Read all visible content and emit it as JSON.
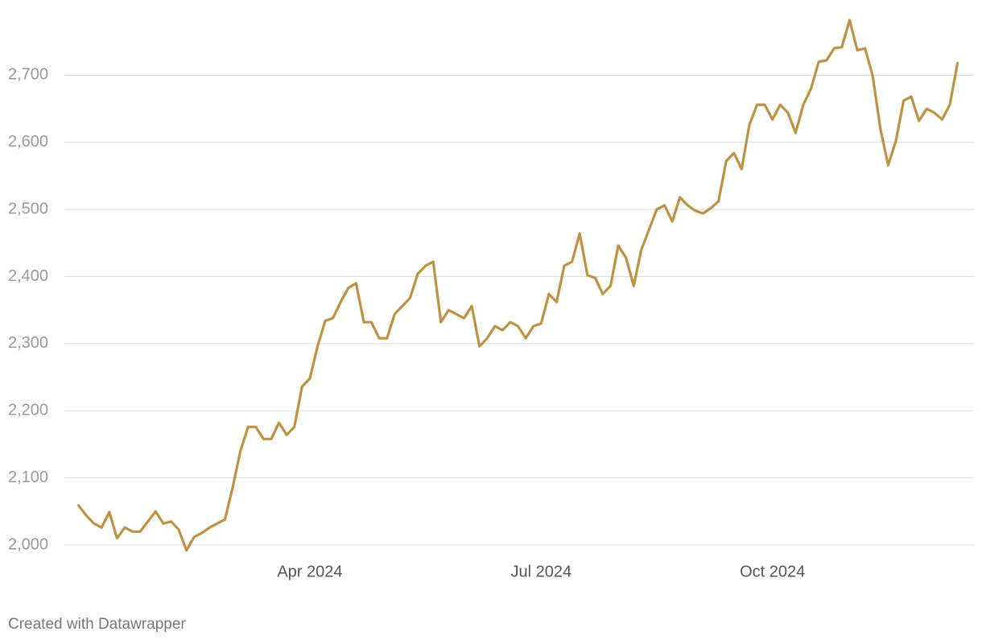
{
  "chart_data": {
    "type": "line",
    "categories": [
      null,
      null,
      null,
      null,
      null,
      null,
      null,
      null,
      null,
      null,
      null,
      null,
      null,
      null,
      null,
      null,
      null,
      null,
      null,
      null,
      null,
      null,
      null,
      null,
      null,
      null,
      null,
      null,
      null,
      null,
      "Apr 2024",
      null,
      null,
      null,
      null,
      null,
      null,
      null,
      null,
      null,
      null,
      null,
      null,
      null,
      null,
      null,
      null,
      null,
      null,
      null,
      null,
      null,
      null,
      null,
      null,
      null,
      null,
      null,
      null,
      null,
      "Jul 2024",
      null,
      null,
      null,
      null,
      null,
      null,
      null,
      null,
      null,
      null,
      null,
      null,
      null,
      null,
      null,
      null,
      null,
      null,
      null,
      null,
      null,
      null,
      null,
      null,
      null,
      null,
      null,
      null,
      null,
      "Oct 2024",
      null,
      null,
      null,
      null,
      null,
      null,
      null,
      null,
      null,
      null,
      null,
      null,
      null,
      null,
      null,
      null,
      null,
      null,
      null,
      null,
      null,
      null,
      null,
      null
    ],
    "series": [
      {
        "color": "#c0913f",
        "values": [
          2059,
          2044,
          2032,
          2026,
          2049,
          2010,
          2026,
          2020,
          2020,
          2035,
          2050,
          2032,
          2035,
          2023,
          1992,
          2012,
          2018,
          2026,
          2032,
          2038,
          2086,
          2140,
          2176,
          2176,
          2158,
          2158,
          2182,
          2164,
          2176,
          2236,
          2248,
          2296,
          2334,
          2338,
          2362,
          2383,
          2390,
          2332,
          2332,
          2308,
          2308,
          2344,
          2356,
          2368,
          2404,
          2416,
          2422,
          2332,
          2350,
          2344,
          2338,
          2356,
          2296,
          2308,
          2326,
          2320,
          2332,
          2326,
          2308,
          2326,
          2330,
          2374,
          2362,
          2416,
          2422,
          2464,
          2402,
          2398,
          2374,
          2386,
          2446,
          2428,
          2386,
          2440,
          2470,
          2500,
          2506,
          2482,
          2518,
          2506,
          2498,
          2494,
          2502,
          2512,
          2572,
          2584,
          2560,
          2626,
          2656,
          2656,
          2634,
          2656,
          2644,
          2614,
          2656,
          2680,
          2720,
          2722,
          2740,
          2742,
          2782,
          2737,
          2740,
          2699,
          2620,
          2566,
          2602,
          2662,
          2668,
          2632,
          2650,
          2644,
          2634,
          2656,
          2718
        ]
      }
    ],
    "ylim": [
      1970,
      2800
    ],
    "yticks": [
      {
        "value": 2000,
        "label": "2,000"
      },
      {
        "value": 2100,
        "label": "2,100"
      },
      {
        "value": 2200,
        "label": "2,200"
      },
      {
        "value": 2300,
        "label": "2,300"
      },
      {
        "value": 2400,
        "label": "2,400"
      },
      {
        "value": 2500,
        "label": "2,500"
      },
      {
        "value": 2600,
        "label": "2,600"
      },
      {
        "value": 2700,
        "label": "2,700"
      }
    ],
    "grid": true,
    "credit": "Created with Datawrapper"
  }
}
